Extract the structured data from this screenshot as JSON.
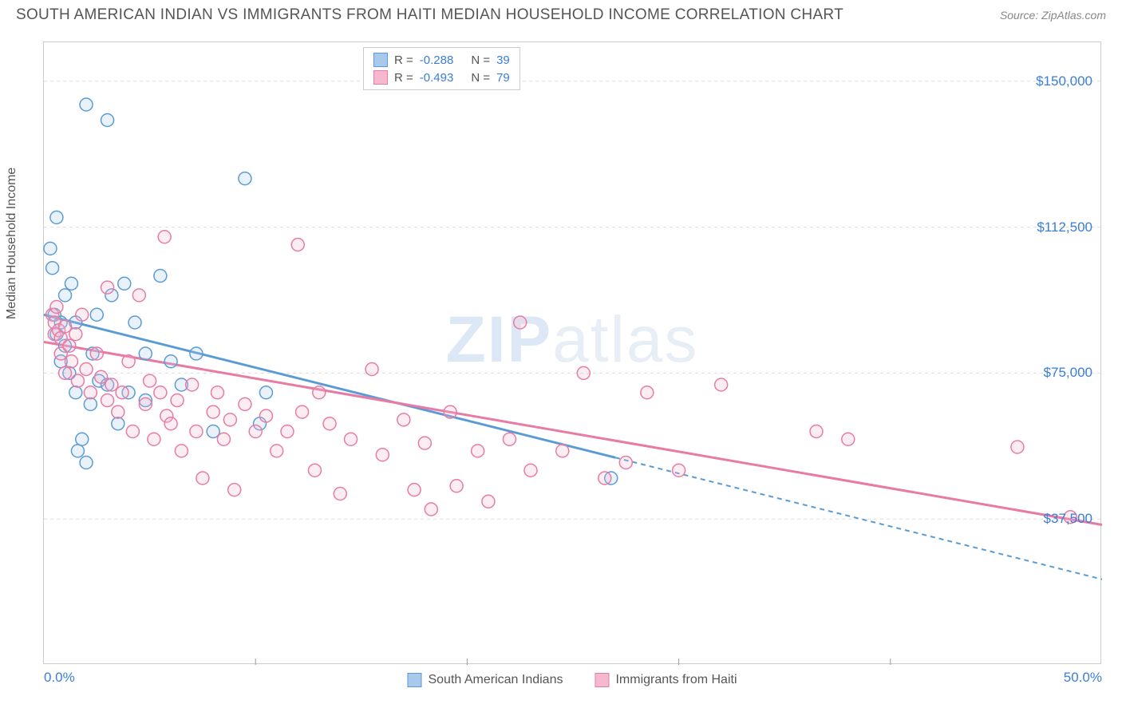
{
  "title": "SOUTH AMERICAN INDIAN VS IMMIGRANTS FROM HAITI MEDIAN HOUSEHOLD INCOME CORRELATION CHART",
  "source_label": "Source: ZipAtlas.com",
  "ylabel": "Median Household Income",
  "watermark": {
    "bold": "ZIP",
    "rest": "atlas"
  },
  "chart": {
    "type": "scatter",
    "xlim": [
      0,
      50
    ],
    "ylim": [
      0,
      160000
    ],
    "xticks": [
      {
        "value": 0,
        "label": "0.0%"
      },
      {
        "value": 50,
        "label": "50.0%"
      }
    ],
    "xgrid": [
      10,
      20,
      30,
      40
    ],
    "yticks": [
      {
        "value": 37500,
        "label": "$37,500"
      },
      {
        "value": 75000,
        "label": "$75,000"
      },
      {
        "value": 112500,
        "label": "$112,500"
      },
      {
        "value": 150000,
        "label": "$150,000"
      }
    ],
    "background_color": "#ffffff",
    "grid_color": "#dddddd",
    "axis_color": "#cccccc",
    "marker_radius": 8,
    "marker_stroke_width": 1.5,
    "marker_fill_opacity": 0.25,
    "series": [
      {
        "name": "South American Indians",
        "color_stroke": "#5b9bd5",
        "color_fill": "#a8c8ec",
        "R": "-0.288",
        "N": "39",
        "trend": {
          "y_at_x0": 90000,
          "y_at_xmax": 22000,
          "solid_until_x": 27
        },
        "points": [
          [
            0.3,
            107000
          ],
          [
            0.4,
            102000
          ],
          [
            0.5,
            90000
          ],
          [
            0.6,
            85000
          ],
          [
            0.6,
            115000
          ],
          [
            0.8,
            88000
          ],
          [
            0.8,
            78000
          ],
          [
            1.0,
            95000
          ],
          [
            1.0,
            82000
          ],
          [
            1.2,
            75000
          ],
          [
            1.3,
            98000
          ],
          [
            1.5,
            88000
          ],
          [
            1.5,
            70000
          ],
          [
            1.6,
            55000
          ],
          [
            1.8,
            58000
          ],
          [
            2.0,
            144000
          ],
          [
            2.0,
            52000
          ],
          [
            2.2,
            67000
          ],
          [
            2.3,
            80000
          ],
          [
            2.5,
            90000
          ],
          [
            2.6,
            73000
          ],
          [
            3.0,
            140000
          ],
          [
            3.0,
            72000
          ],
          [
            3.2,
            95000
          ],
          [
            3.5,
            62000
          ],
          [
            3.8,
            98000
          ],
          [
            4.0,
            70000
          ],
          [
            4.3,
            88000
          ],
          [
            4.8,
            80000
          ],
          [
            4.8,
            68000
          ],
          [
            5.5,
            100000
          ],
          [
            6.0,
            78000
          ],
          [
            6.5,
            72000
          ],
          [
            7.2,
            80000
          ],
          [
            8.0,
            60000
          ],
          [
            9.5,
            125000
          ],
          [
            10.2,
            62000
          ],
          [
            10.5,
            70000
          ],
          [
            26.8,
            48000
          ]
        ]
      },
      {
        "name": "Immigrants from Haiti",
        "color_stroke": "#e87ba4",
        "color_fill": "#f5b8ce",
        "R": "-0.493",
        "N": "79",
        "trend": {
          "y_at_x0": 83000,
          "y_at_xmax": 36000,
          "solid_until_x": 50
        },
        "points": [
          [
            0.4,
            90000
          ],
          [
            0.5,
            88000
          ],
          [
            0.5,
            85000
          ],
          [
            0.6,
            92000
          ],
          [
            0.7,
            86000
          ],
          [
            0.8,
            84000
          ],
          [
            0.8,
            80000
          ],
          [
            1.0,
            87000
          ],
          [
            1.0,
            75000
          ],
          [
            1.2,
            82000
          ],
          [
            1.3,
            78000
          ],
          [
            1.5,
            85000
          ],
          [
            1.6,
            73000
          ],
          [
            1.8,
            90000
          ],
          [
            2.0,
            76000
          ],
          [
            2.2,
            70000
          ],
          [
            2.5,
            80000
          ],
          [
            2.7,
            74000
          ],
          [
            3.0,
            97000
          ],
          [
            3.0,
            68000
          ],
          [
            3.2,
            72000
          ],
          [
            3.5,
            65000
          ],
          [
            3.7,
            70000
          ],
          [
            4.0,
            78000
          ],
          [
            4.2,
            60000
          ],
          [
            4.5,
            95000
          ],
          [
            4.8,
            67000
          ],
          [
            5.0,
            73000
          ],
          [
            5.2,
            58000
          ],
          [
            5.5,
            70000
          ],
          [
            5.7,
            110000
          ],
          [
            5.8,
            64000
          ],
          [
            6.0,
            62000
          ],
          [
            6.3,
            68000
          ],
          [
            6.5,
            55000
          ],
          [
            7.0,
            72000
          ],
          [
            7.2,
            60000
          ],
          [
            7.5,
            48000
          ],
          [
            8.0,
            65000
          ],
          [
            8.2,
            70000
          ],
          [
            8.5,
            58000
          ],
          [
            8.8,
            63000
          ],
          [
            9.0,
            45000
          ],
          [
            9.5,
            67000
          ],
          [
            10.0,
            60000
          ],
          [
            10.5,
            64000
          ],
          [
            11.0,
            55000
          ],
          [
            11.5,
            60000
          ],
          [
            12.0,
            108000
          ],
          [
            12.2,
            65000
          ],
          [
            12.8,
            50000
          ],
          [
            13.0,
            70000
          ],
          [
            13.5,
            62000
          ],
          [
            14.0,
            44000
          ],
          [
            14.5,
            58000
          ],
          [
            15.5,
            76000
          ],
          [
            16.0,
            54000
          ],
          [
            17.0,
            63000
          ],
          [
            17.5,
            45000
          ],
          [
            18.0,
            57000
          ],
          [
            18.3,
            40000
          ],
          [
            19.2,
            65000
          ],
          [
            19.5,
            46000
          ],
          [
            20.5,
            55000
          ],
          [
            21.0,
            42000
          ],
          [
            22.0,
            58000
          ],
          [
            22.5,
            88000
          ],
          [
            23.0,
            50000
          ],
          [
            24.5,
            55000
          ],
          [
            25.5,
            75000
          ],
          [
            26.5,
            48000
          ],
          [
            27.5,
            52000
          ],
          [
            28.5,
            70000
          ],
          [
            30.0,
            50000
          ],
          [
            32.0,
            72000
          ],
          [
            36.5,
            60000
          ],
          [
            38.0,
            58000
          ],
          [
            46.0,
            56000
          ],
          [
            48.5,
            38000
          ]
        ]
      }
    ],
    "legend": {
      "items": [
        {
          "label": "South American Indians",
          "fill": "#a8c8ec",
          "stroke": "#5b9bd5"
        },
        {
          "label": "Immigrants from Haiti",
          "fill": "#f5b8ce",
          "stroke": "#e87ba4"
        }
      ]
    }
  }
}
